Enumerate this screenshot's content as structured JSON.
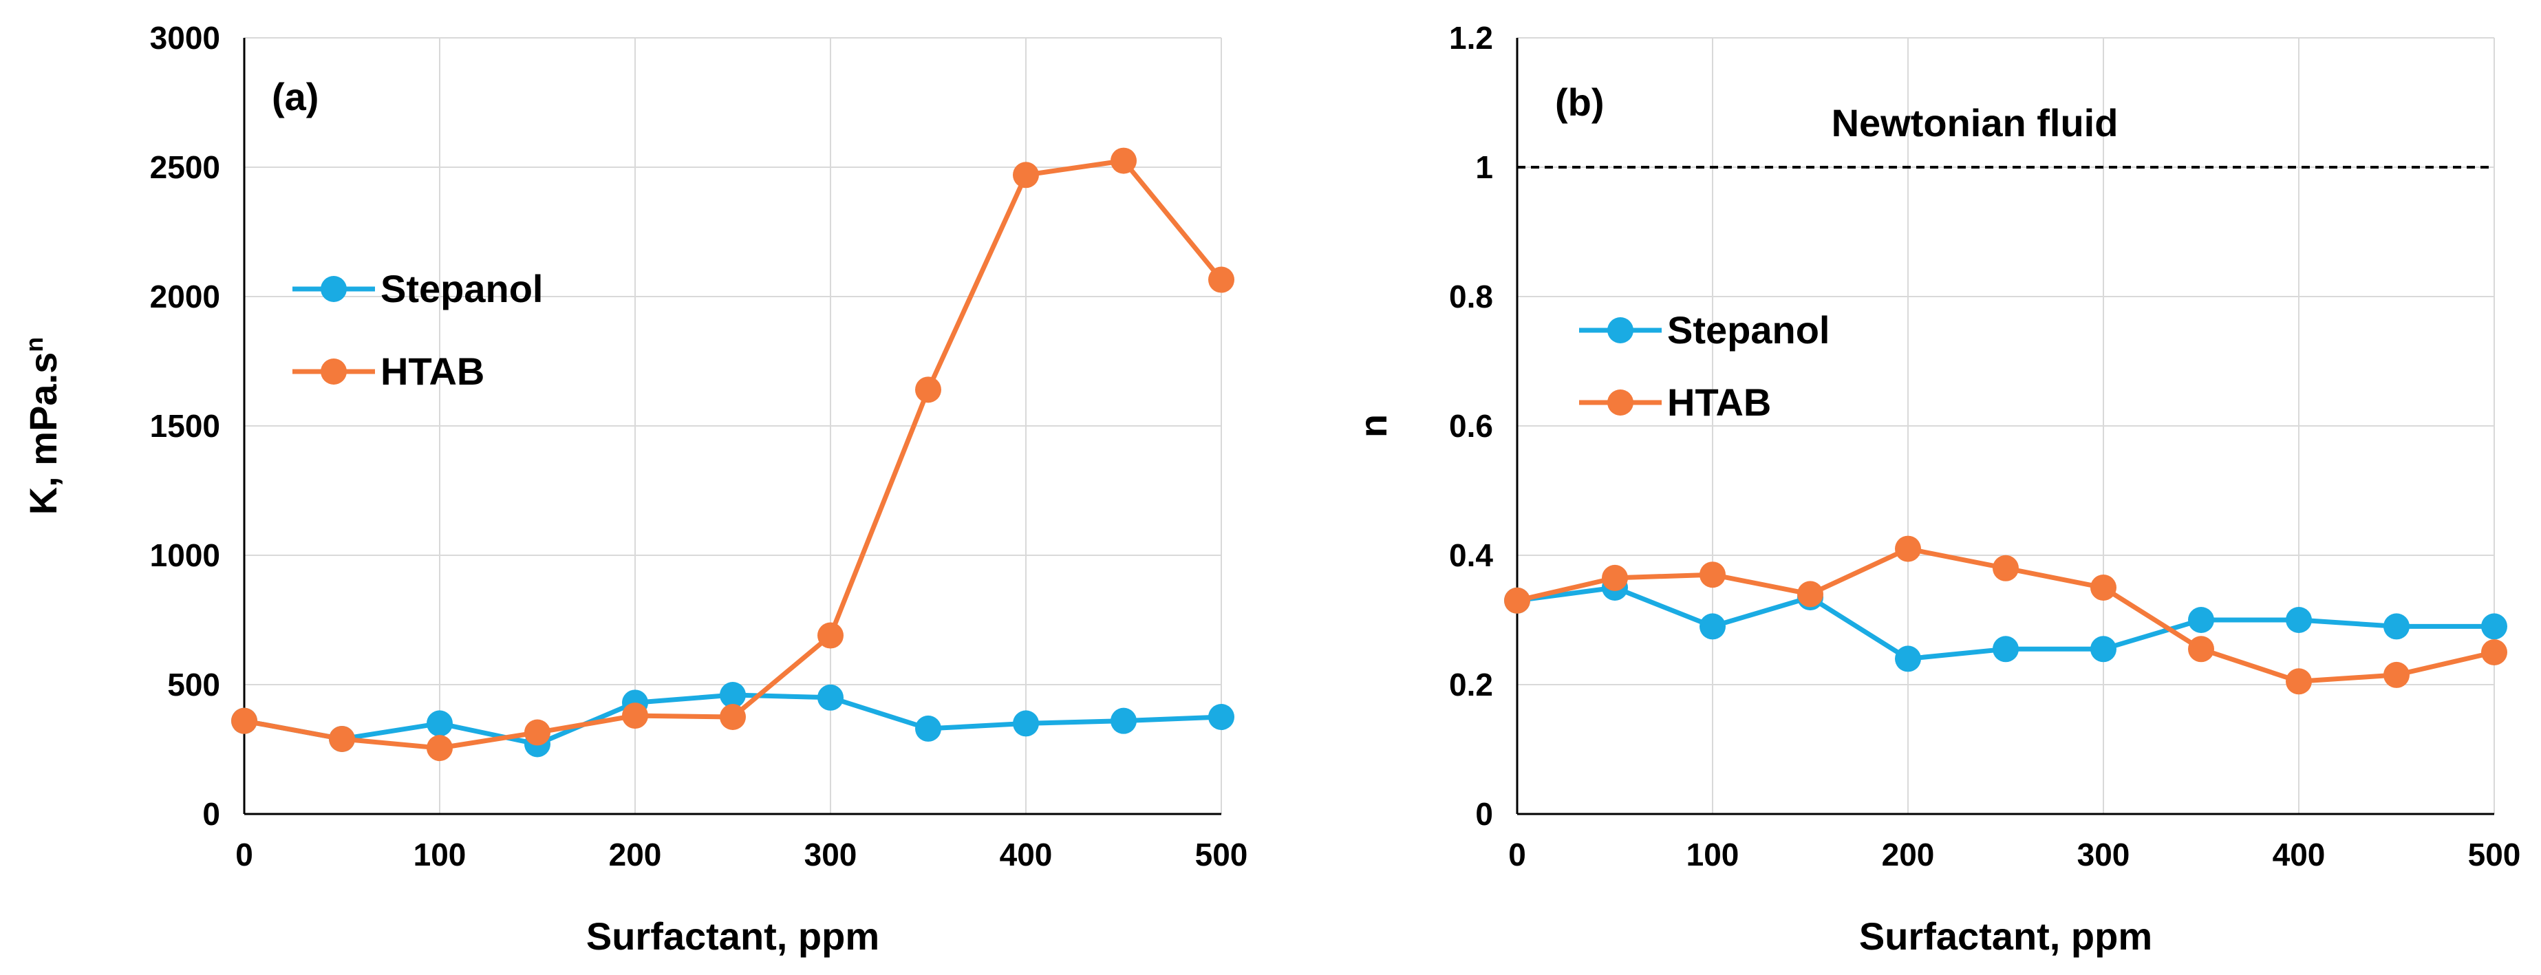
{
  "colors": {
    "stepanol": "#1aabe3",
    "htab": "#f47a3b"
  },
  "chart_data": [
    {
      "type": "line",
      "panel_label": "(a)",
      "xlabel": "Surfactant, ppm",
      "ylabel": "K, mPa.s",
      "ylabel_superscript": "n",
      "xlim": [
        0,
        500
      ],
      "ylim": [
        0,
        3000
      ],
      "xticks": [
        0,
        100,
        200,
        300,
        400,
        500
      ],
      "yticks": [
        0,
        500,
        1000,
        1500,
        2000,
        2500,
        3000
      ],
      "grid": true,
      "legend_position": "upper-left",
      "x": [
        0,
        50,
        100,
        150,
        200,
        250,
        300,
        350,
        400,
        450,
        500
      ],
      "series": [
        {
          "name": "Stepanol",
          "color": "#1aabe3",
          "values": [
            360,
            290,
            350,
            270,
            430,
            460,
            450,
            330,
            350,
            360,
            375
          ]
        },
        {
          "name": "HTAB",
          "color": "#f47a3b",
          "values": [
            360,
            290,
            255,
            315,
            380,
            375,
            690,
            1640,
            2470,
            2525,
            2065
          ]
        }
      ]
    },
    {
      "type": "line",
      "panel_label": "(b)",
      "xlabel": "Surfactant, ppm",
      "ylabel": "n",
      "xlim": [
        0,
        500
      ],
      "ylim": [
        0,
        1.2
      ],
      "xticks": [
        0,
        100,
        200,
        300,
        400,
        500
      ],
      "yticks": [
        0,
        0.2,
        0.4,
        0.6,
        0.8,
        1,
        1.2
      ],
      "grid": true,
      "legend_position": "middle-left",
      "reference_line": {
        "y": 1,
        "label": "Newtonian fluid",
        "style": "dashed"
      },
      "x": [
        0,
        50,
        100,
        150,
        200,
        250,
        300,
        350,
        400,
        450,
        500
      ],
      "series": [
        {
          "name": "Stepanol",
          "color": "#1aabe3",
          "values": [
            0.33,
            0.35,
            0.29,
            0.335,
            0.24,
            0.255,
            0.255,
            0.3,
            0.3,
            0.29,
            0.29
          ]
        },
        {
          "name": "HTAB",
          "color": "#f47a3b",
          "values": [
            0.33,
            0.365,
            0.37,
            0.34,
            0.41,
            0.38,
            0.35,
            0.255,
            0.205,
            0.215,
            0.25
          ]
        }
      ]
    }
  ]
}
